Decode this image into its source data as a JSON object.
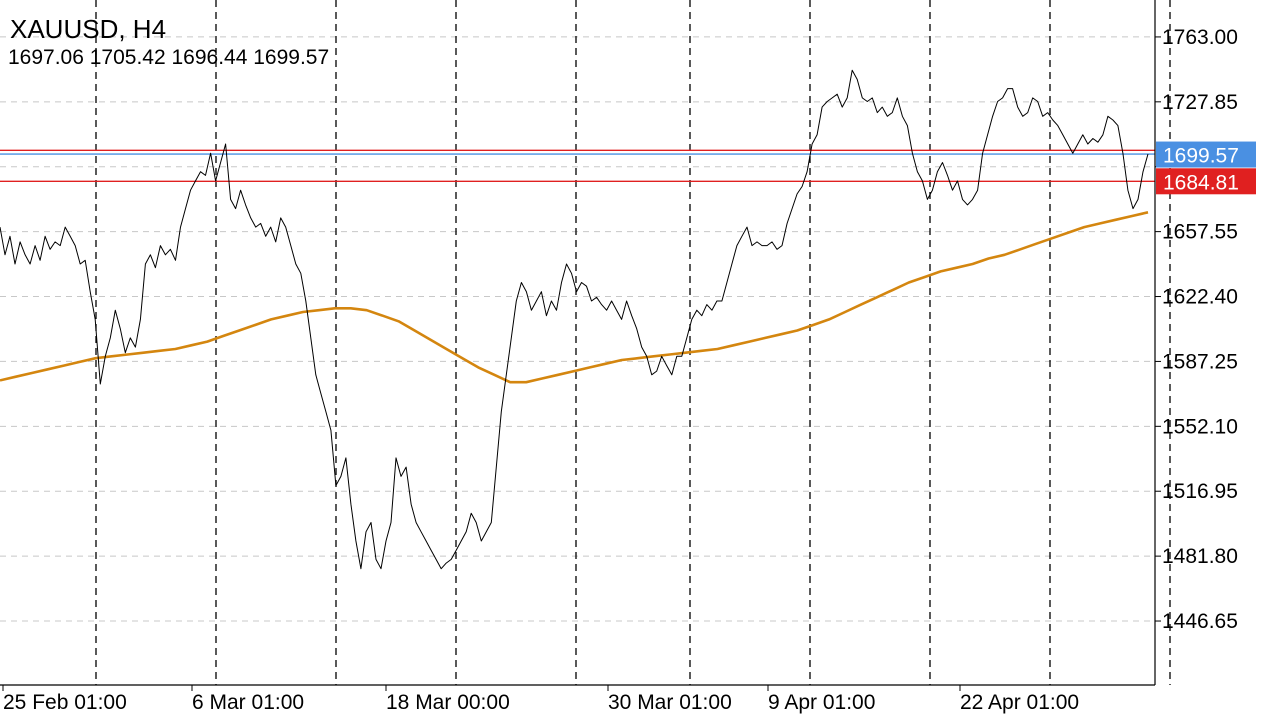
{
  "header": {
    "title": "XAUUSD, H4",
    "ohlc": "1697.06 1705.42 1696.44 1699.57"
  },
  "colors": {
    "price_line": "#000000",
    "moving_average": "#d4860f",
    "bid_line": "#4a90e2",
    "level_line": "#e02020",
    "grid": "#c8c8c8",
    "separator": "#000000"
  },
  "chart_data": {
    "type": "line",
    "symbol": "XAUUSD",
    "timeframe": "H4",
    "ylim": [
      1412.0,
      1783.0
    ],
    "grid": true,
    "y_ticks": [
      1763.0,
      1727.85,
      1692.7,
      1657.55,
      1622.4,
      1587.25,
      1552.1,
      1516.95,
      1481.8,
      1446.65
    ],
    "y_tick_labels": [
      "1763.00",
      "1727.85",
      "",
      "1657.55",
      "1622.40",
      "1587.25",
      "1552.10",
      "1516.95",
      "1481.80",
      "1446.65"
    ],
    "x_tick_labels": [
      "25 Feb 01:00",
      "6 Mar 01:00",
      "18 Mar 00:00",
      "30 Mar 01:00",
      "9 Apr 01:00",
      "22 Apr 01:00"
    ],
    "bid_price": 1699.57,
    "bid_label": "1699.57",
    "level_price": 1684.81,
    "level_label": "1684.81",
    "upper_level_price": 1701.6,
    "session_separators": 10,
    "series": [
      {
        "role": "price",
        "values": [
          1660,
          1645,
          1655,
          1640,
          1652,
          1645,
          1640,
          1650,
          1642,
          1655,
          1648,
          1652,
          1650,
          1660,
          1655,
          1650,
          1640,
          1642,
          1625,
          1610,
          1575,
          1590,
          1600,
          1615,
          1605,
          1592,
          1600,
          1595,
          1610,
          1640,
          1645,
          1638,
          1650,
          1645,
          1648,
          1642,
          1660,
          1670,
          1680,
          1685,
          1690,
          1688,
          1700,
          1685,
          1695,
          1705,
          1675,
          1670,
          1680,
          1672,
          1665,
          1660,
          1662,
          1655,
          1660,
          1652,
          1665,
          1660,
          1650,
          1640,
          1635,
          1620,
          1600,
          1580,
          1570,
          1560,
          1550,
          1520,
          1525,
          1535,
          1510,
          1490,
          1475,
          1495,
          1500,
          1480,
          1475,
          1490,
          1500,
          1535,
          1525,
          1530,
          1510,
          1500,
          1495,
          1490,
          1485,
          1480,
          1475,
          1478,
          1480,
          1485,
          1490,
          1495,
          1505,
          1500,
          1490,
          1495,
          1500,
          1530,
          1560,
          1580,
          1600,
          1620,
          1630,
          1625,
          1615,
          1620,
          1625,
          1612,
          1620,
          1615,
          1630,
          1640,
          1635,
          1625,
          1630,
          1628,
          1620,
          1622,
          1618,
          1615,
          1620,
          1615,
          1610,
          1620,
          1612,
          1605,
          1595,
          1590,
          1580,
          1582,
          1590,
          1585,
          1580,
          1590,
          1590,
          1600,
          1610,
          1615,
          1612,
          1618,
          1615,
          1620,
          1620,
          1630,
          1640,
          1650,
          1655,
          1660,
          1650,
          1652,
          1650,
          1650,
          1652,
          1648,
          1650,
          1662,
          1670,
          1678,
          1682,
          1690,
          1705,
          1710,
          1725,
          1728,
          1730,
          1732,
          1725,
          1730,
          1745,
          1740,
          1730,
          1728,
          1730,
          1722,
          1725,
          1720,
          1722,
          1730,
          1720,
          1715,
          1700,
          1690,
          1685,
          1675,
          1680,
          1690,
          1695,
          1688,
          1680,
          1685,
          1675,
          1672,
          1675,
          1680,
          1700,
          1710,
          1720,
          1728,
          1730,
          1735,
          1735,
          1725,
          1720,
          1722,
          1730,
          1728,
          1720,
          1722,
          1718,
          1715,
          1710,
          1705,
          1700,
          1705,
          1710,
          1705,
          1708,
          1706,
          1710,
          1720,
          1718,
          1715,
          1700,
          1680,
          1670,
          1675,
          1690,
          1699.57
        ]
      },
      {
        "role": "moving_average",
        "values": [
          1577,
          1579,
          1581,
          1583,
          1585,
          1587,
          1589,
          1590,
          1591,
          1592,
          1593,
          1594,
          1596,
          1598,
          1601,
          1604,
          1607,
          1610,
          1612,
          1614,
          1615,
          1616,
          1616,
          1615,
          1612,
          1609,
          1604,
          1599,
          1594,
          1589,
          1584,
          1580,
          1576,
          1576,
          1578,
          1580,
          1582,
          1584,
          1586,
          1588,
          1589,
          1590,
          1591,
          1592,
          1593,
          1594,
          1596,
          1598,
          1600,
          1602,
          1604,
          1607,
          1610,
          1614,
          1618,
          1622,
          1626,
          1630,
          1633,
          1636,
          1638,
          1640,
          1643,
          1645,
          1648,
          1651,
          1654,
          1657,
          1660,
          1662,
          1664,
          1666,
          1668
        ]
      }
    ]
  }
}
